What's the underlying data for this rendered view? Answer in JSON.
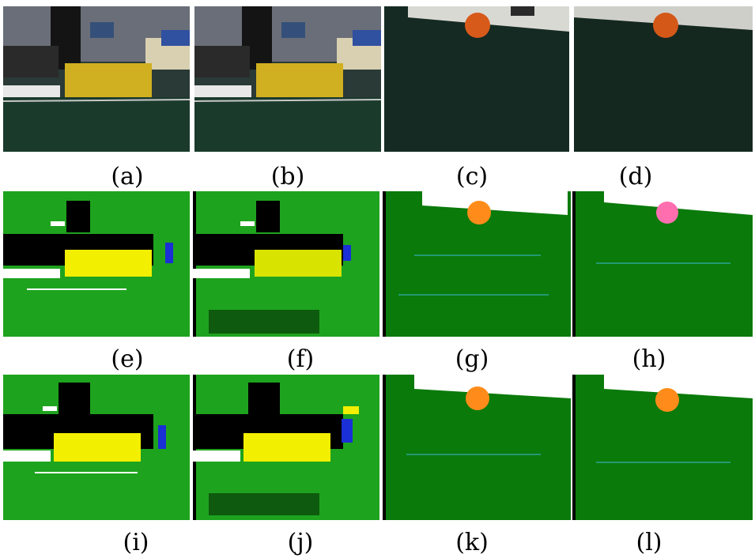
{
  "figure": {
    "captions": [
      "(a)",
      "(b)",
      "(c)",
      "(d)",
      "(e)",
      "(f)",
      "(g)",
      "(h)",
      "(i)",
      "(j)",
      "(k)",
      "(l)"
    ]
  },
  "colors": {
    "field_green": "#1ea31e",
    "field_dark_green": "#0a7a0a",
    "goal_yellow": "#f2ef00",
    "ball_orange": "#ff8c1a",
    "white": "#ffffff",
    "black": "#000000",
    "blue": "#1a2fd6",
    "cyan_noise": "#3fb7d9",
    "photo_carpet": "#17332a",
    "photo_wall": "#6b6f7a"
  },
  "rows": [
    {
      "kind": "camera-images",
      "panels": [
        "a",
        "b",
        "c",
        "d"
      ]
    },
    {
      "kind": "classification-result",
      "panels": [
        "e",
        "f",
        "g",
        "h"
      ]
    },
    {
      "kind": "classification-result",
      "panels": [
        "i",
        "j",
        "k",
        "l"
      ]
    }
  ]
}
